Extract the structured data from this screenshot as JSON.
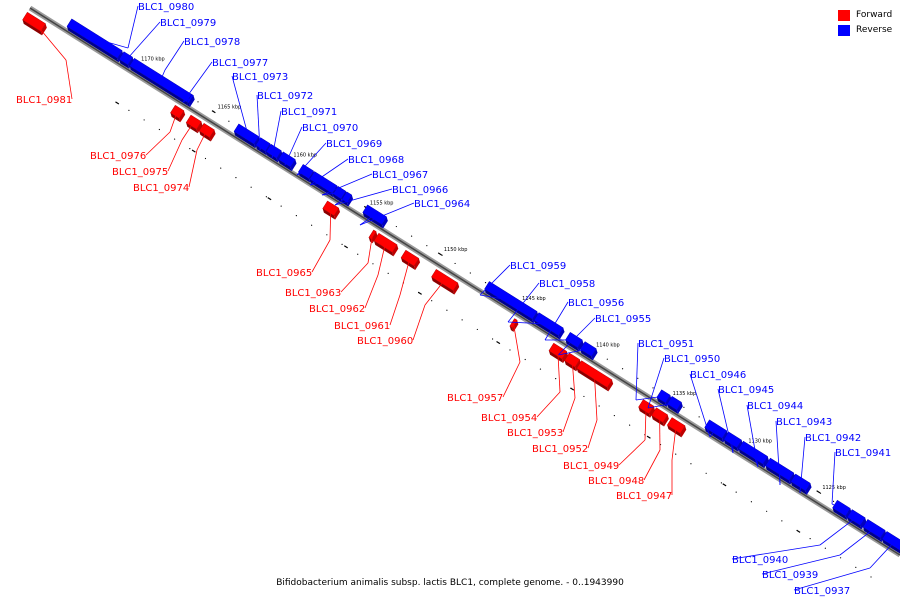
{
  "caption": "Bifidobacterium animalis subsp. lactis BLC1, complete genome. - 0..1943990",
  "legend": [
    {
      "label": "Forward",
      "color": "#ff0000"
    },
    {
      "label": "Reverse",
      "color": "#0000ff"
    }
  ],
  "colors": {
    "forward": "#ff0000",
    "reverse": "#0000ff",
    "axis": "#555555"
  },
  "ticks": [
    "1170 kbp",
    "1165 kbp",
    "1160 kbp",
    "1155 kbp",
    "1150 kbp",
    "1145 kbp",
    "1140 kbp",
    "1135 kbp",
    "1130 kbp",
    "1125 kbp"
  ],
  "genes": [
    {
      "name": "BLC1_0981",
      "strand": "forward"
    },
    {
      "name": "BLC1_0980",
      "strand": "reverse"
    },
    {
      "name": "BLC1_0979",
      "strand": "reverse"
    },
    {
      "name": "BLC1_0978",
      "strand": "reverse"
    },
    {
      "name": "BLC1_0977",
      "strand": "reverse"
    },
    {
      "name": "BLC1_0976",
      "strand": "forward"
    },
    {
      "name": "BLC1_0975",
      "strand": "forward"
    },
    {
      "name": "BLC1_0974",
      "strand": "forward"
    },
    {
      "name": "BLC1_0973",
      "strand": "reverse"
    },
    {
      "name": "BLC1_0972",
      "strand": "reverse"
    },
    {
      "name": "BLC1_0971",
      "strand": "reverse"
    },
    {
      "name": "BLC1_0970",
      "strand": "reverse"
    },
    {
      "name": "BLC1_0969",
      "strand": "reverse"
    },
    {
      "name": "BLC1_0968",
      "strand": "reverse"
    },
    {
      "name": "BLC1_0967",
      "strand": "reverse"
    },
    {
      "name": "BLC1_0966",
      "strand": "reverse"
    },
    {
      "name": "BLC1_0965",
      "strand": "forward"
    },
    {
      "name": "BLC1_0964",
      "strand": "reverse"
    },
    {
      "name": "BLC1_0963",
      "strand": "forward"
    },
    {
      "name": "BLC1_0962",
      "strand": "forward"
    },
    {
      "name": "BLC1_0961",
      "strand": "forward"
    },
    {
      "name": "BLC1_0960",
      "strand": "forward"
    },
    {
      "name": "BLC1_0959",
      "strand": "reverse"
    },
    {
      "name": "BLC1_0958",
      "strand": "reverse"
    },
    {
      "name": "BLC1_0957",
      "strand": "forward"
    },
    {
      "name": "BLC1_0956",
      "strand": "reverse"
    },
    {
      "name": "BLC1_0955",
      "strand": "reverse"
    },
    {
      "name": "BLC1_0954",
      "strand": "forward"
    },
    {
      "name": "BLC1_0953",
      "strand": "forward"
    },
    {
      "name": "BLC1_0952",
      "strand": "forward"
    },
    {
      "name": "BLC1_0951",
      "strand": "reverse"
    },
    {
      "name": "BLC1_0950",
      "strand": "reverse"
    },
    {
      "name": "BLC1_0949",
      "strand": "forward"
    },
    {
      "name": "BLC1_0948",
      "strand": "forward"
    },
    {
      "name": "BLC1_0947",
      "strand": "forward"
    },
    {
      "name": "BLC1_0946",
      "strand": "reverse"
    },
    {
      "name": "BLC1_0945",
      "strand": "reverse"
    },
    {
      "name": "BLC1_0944",
      "strand": "reverse"
    },
    {
      "name": "BLC1_0943",
      "strand": "reverse"
    },
    {
      "name": "BLC1_0942",
      "strand": "reverse"
    },
    {
      "name": "BLC1_0941",
      "strand": "reverse"
    },
    {
      "name": "BLC1_0940",
      "strand": "reverse"
    },
    {
      "name": "BLC1_0939",
      "strand": "reverse"
    },
    {
      "name": "BLC1_0937",
      "strand": "reverse"
    }
  ]
}
